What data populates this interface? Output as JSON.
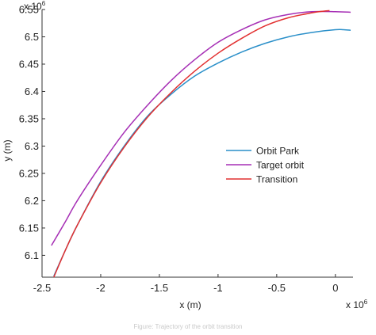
{
  "chart_data": {
    "type": "line",
    "title": "",
    "xlabel": "x (m)",
    "ylabel": "y (m)",
    "x_exponent_label": "x 10",
    "x_exponent_power": "6",
    "y_exponent_label": "x 10",
    "y_exponent_power": "6",
    "xlim": [
      -2.5,
      0.15
    ],
    "ylim": [
      6.06,
      6.55
    ],
    "xticks": [
      -2.5,
      -2,
      -1.5,
      -1,
      -0.5,
      0
    ],
    "xtick_labels": [
      "-2.5",
      "-2",
      "-1.5",
      "-1",
      "-0.5",
      "0"
    ],
    "yticks": [
      6.1,
      6.15,
      6.2,
      6.25,
      6.3,
      6.35,
      6.4,
      6.45,
      6.5,
      6.55
    ],
    "ytick_labels": [
      "6.1",
      "6.15",
      "6.2",
      "6.25",
      "6.3",
      "6.35",
      "6.4",
      "6.45",
      "6.5",
      "6.55"
    ],
    "grid": false,
    "legend_position": "center-right",
    "series": [
      {
        "name": "Orbit Park",
        "color": "#2a8fc9",
        "x": [
          -2.4,
          -2.3,
          -2.2,
          -2.0,
          -1.8,
          -1.6,
          -1.4,
          -1.2,
          -1.0,
          -0.8,
          -0.6,
          -0.4,
          -0.2,
          0.0,
          0.07,
          0.13
        ],
        "y": [
          6.062,
          6.11,
          6.155,
          6.235,
          6.3,
          6.355,
          6.395,
          6.428,
          6.452,
          6.472,
          6.488,
          6.5,
          6.508,
          6.513,
          6.513,
          6.512
        ]
      },
      {
        "name": "Target orbit",
        "color": "#a62fb5",
        "x": [
          -2.42,
          -2.3,
          -2.2,
          -2.0,
          -1.8,
          -1.6,
          -1.4,
          -1.2,
          -1.0,
          -0.8,
          -0.6,
          -0.4,
          -0.2,
          0.0,
          0.13
        ],
        "y": [
          6.118,
          6.162,
          6.2,
          6.265,
          6.325,
          6.375,
          6.42,
          6.458,
          6.49,
          6.513,
          6.531,
          6.541,
          6.546,
          6.546,
          6.545
        ]
      },
      {
        "name": "Transition",
        "color": "#e23030",
        "x": [
          -2.4,
          -2.3,
          -2.2,
          -2.0,
          -1.8,
          -1.6,
          -1.4,
          -1.2,
          -1.0,
          -0.8,
          -0.6,
          -0.4,
          -0.2,
          -0.1,
          -0.05
        ],
        "y": [
          6.06,
          6.11,
          6.155,
          6.233,
          6.298,
          6.353,
          6.398,
          6.437,
          6.47,
          6.497,
          6.52,
          6.535,
          6.544,
          6.547,
          6.548
        ]
      }
    ]
  },
  "caption": "Figure: Trajectory of the orbit transition"
}
